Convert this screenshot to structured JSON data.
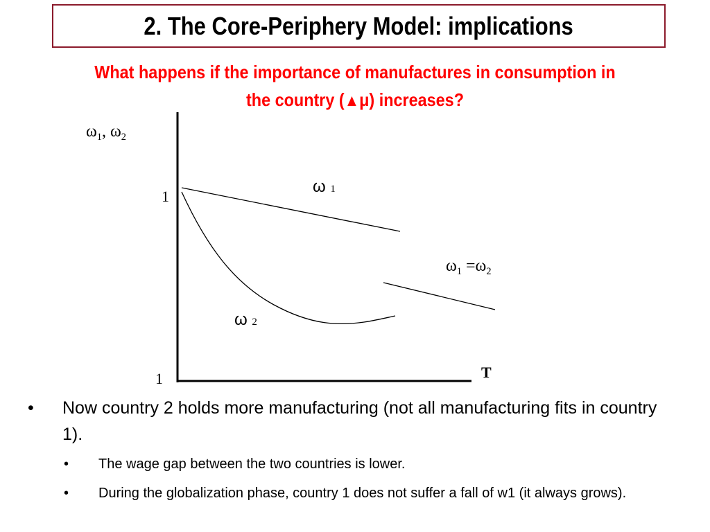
{
  "slide": {
    "title": "2. The Core-Periphery Model: implications",
    "subtitle_line1": "What happens if the importance of manufactures in consumption in",
    "subtitle_line2_a": "the country  (",
    "subtitle_triangle": "▲",
    "subtitle_line2_b": "μ) increases?"
  },
  "diagram": {
    "y_axis_label": "ω",
    "y_axis_sub1": "1",
    "y_axis_sep": ", ω",
    "y_axis_sub2": "2",
    "tick_upper": "1",
    "tick_lower": "1",
    "x_axis_label": "T",
    "curve1_label": "ω",
    "curve1_sub": "1",
    "curve2_label": "ω",
    "curve2_sub": "2",
    "equal_label_a": "ω",
    "equal_sub_a": "1",
    "equal_mid": " =ω",
    "equal_sub_b": "2"
  },
  "bullets": {
    "main": "Now country 2 holds more manufacturing (not all manufacturing fits in country 1).",
    "sub1": "The wage gap between the two countries is lower.",
    "sub2": "During the globalization phase, country 1 does not suffer a fall of w1 (it always grows).",
    "marker": "•"
  },
  "colors": {
    "title_border": "#8b1a2b",
    "subtitle": "#ff0000"
  }
}
